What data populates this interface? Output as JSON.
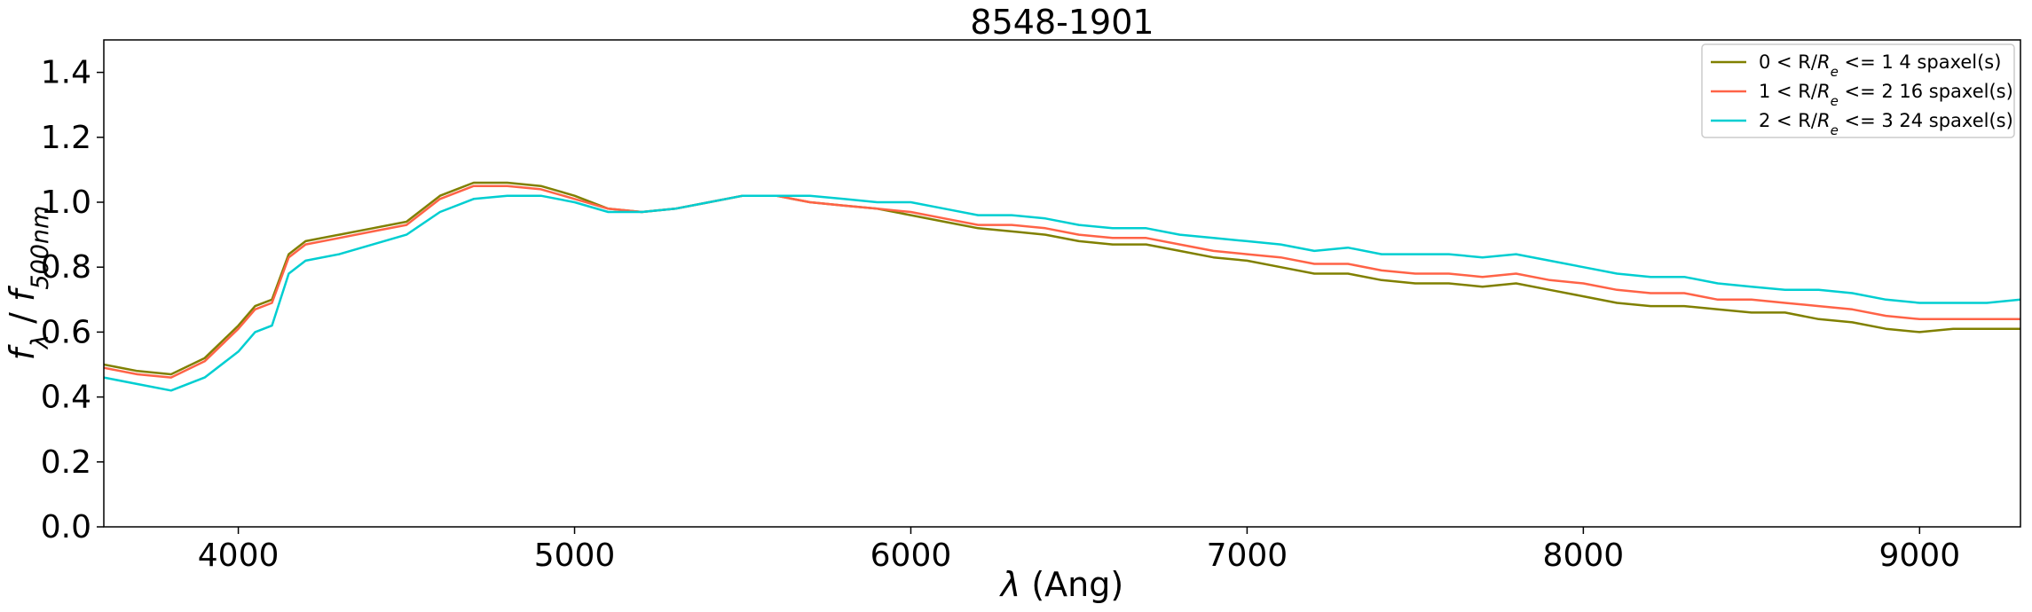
{
  "chart_data": {
    "type": "line",
    "title": "8548-1901",
    "xlim": [
      3600,
      9300
    ],
    "ylim": [
      0.0,
      1.5
    ],
    "xticks": [
      4000,
      5000,
      6000,
      7000,
      8000,
      9000
    ],
    "yticks": [
      0.0,
      0.2,
      0.4,
      0.6,
      0.8,
      1.0,
      1.2,
      1.4
    ],
    "ytick_labels": [
      "0.0",
      "0.2",
      "0.4",
      "0.6",
      "0.8",
      "1.0",
      "1.2",
      "1.4"
    ],
    "xlabel_parts": [
      {
        "t": "λ",
        "italic": true
      },
      {
        "t": " (Ang)"
      }
    ],
    "ylabel_parts": [
      {
        "t": "f",
        "italic": true
      },
      {
        "t": "λ",
        "italic": true,
        "sub": true
      },
      {
        "t": " / "
      },
      {
        "t": "f",
        "italic": true
      },
      {
        "t": "500nm",
        "italic": true,
        "sub": true
      }
    ],
    "grid": false,
    "legend_position": "top-right",
    "x": [
      3600,
      3700,
      3800,
      3900,
      4000,
      4050,
      4100,
      4150,
      4200,
      4300,
      4400,
      4500,
      4600,
      4700,
      4800,
      4900,
      5000,
      5100,
      5200,
      5300,
      5400,
      5500,
      5600,
      5700,
      5800,
      5900,
      6000,
      6100,
      6200,
      6300,
      6400,
      6500,
      6600,
      6700,
      6800,
      6900,
      7000,
      7100,
      7200,
      7300,
      7400,
      7500,
      7600,
      7700,
      7800,
      7900,
      8000,
      8100,
      8200,
      8300,
      8400,
      8500,
      8600,
      8700,
      8800,
      8900,
      9000,
      9100,
      9200,
      9300
    ],
    "series": [
      {
        "legend_parts": [
          {
            "t": "0 < R/"
          },
          {
            "t": "R",
            "italic": true
          },
          {
            "t": "e",
            "italic": true,
            "sub": true
          },
          {
            "t": " <= 1 4 spaxel(s)"
          }
        ],
        "color": "#808000",
        "values": [
          0.5,
          0.48,
          0.47,
          0.52,
          0.62,
          0.68,
          0.7,
          0.84,
          0.88,
          0.9,
          0.92,
          0.94,
          1.02,
          1.06,
          1.06,
          1.05,
          1.02,
          0.98,
          0.97,
          0.98,
          1.0,
          1.02,
          1.02,
          1.0,
          0.99,
          0.98,
          0.96,
          0.94,
          0.92,
          0.91,
          0.9,
          0.88,
          0.87,
          0.87,
          0.85,
          0.83,
          0.82,
          0.8,
          0.78,
          0.78,
          0.76,
          0.75,
          0.75,
          0.74,
          0.75,
          0.73,
          0.71,
          0.69,
          0.68,
          0.68,
          0.67,
          0.66,
          0.66,
          0.64,
          0.63,
          0.61,
          0.6,
          0.61,
          0.61,
          0.61
        ]
      },
      {
        "legend_parts": [
          {
            "t": "1 < R/"
          },
          {
            "t": "R",
            "italic": true
          },
          {
            "t": "e",
            "italic": true,
            "sub": true
          },
          {
            "t": " <= 2 16 spaxel(s)"
          }
        ],
        "color": "#ff6347",
        "values": [
          0.49,
          0.47,
          0.46,
          0.51,
          0.61,
          0.67,
          0.69,
          0.83,
          0.87,
          0.89,
          0.91,
          0.93,
          1.01,
          1.05,
          1.05,
          1.04,
          1.01,
          0.98,
          0.97,
          0.98,
          1.0,
          1.02,
          1.02,
          1.0,
          0.99,
          0.98,
          0.97,
          0.95,
          0.93,
          0.93,
          0.92,
          0.9,
          0.89,
          0.89,
          0.87,
          0.85,
          0.84,
          0.83,
          0.81,
          0.81,
          0.79,
          0.78,
          0.78,
          0.77,
          0.78,
          0.76,
          0.75,
          0.73,
          0.72,
          0.72,
          0.7,
          0.7,
          0.69,
          0.68,
          0.67,
          0.65,
          0.64,
          0.64,
          0.64,
          0.64
        ]
      },
      {
        "legend_parts": [
          {
            "t": "2 < R/"
          },
          {
            "t": "R",
            "italic": true
          },
          {
            "t": "e",
            "italic": true,
            "sub": true
          },
          {
            "t": " <= 3 24 spaxel(s)"
          }
        ],
        "color": "#00ced1",
        "values": [
          0.46,
          0.44,
          0.42,
          0.46,
          0.54,
          0.6,
          0.62,
          0.78,
          0.82,
          0.84,
          0.87,
          0.9,
          0.97,
          1.01,
          1.02,
          1.02,
          1.0,
          0.97,
          0.97,
          0.98,
          1.0,
          1.02,
          1.02,
          1.02,
          1.01,
          1.0,
          1.0,
          0.98,
          0.96,
          0.96,
          0.95,
          0.93,
          0.92,
          0.92,
          0.9,
          0.89,
          0.88,
          0.87,
          0.85,
          0.86,
          0.84,
          0.84,
          0.84,
          0.83,
          0.84,
          0.82,
          0.8,
          0.78,
          0.77,
          0.77,
          0.75,
          0.74,
          0.73,
          0.73,
          0.72,
          0.7,
          0.69,
          0.69,
          0.69,
          0.7
        ]
      }
    ]
  }
}
